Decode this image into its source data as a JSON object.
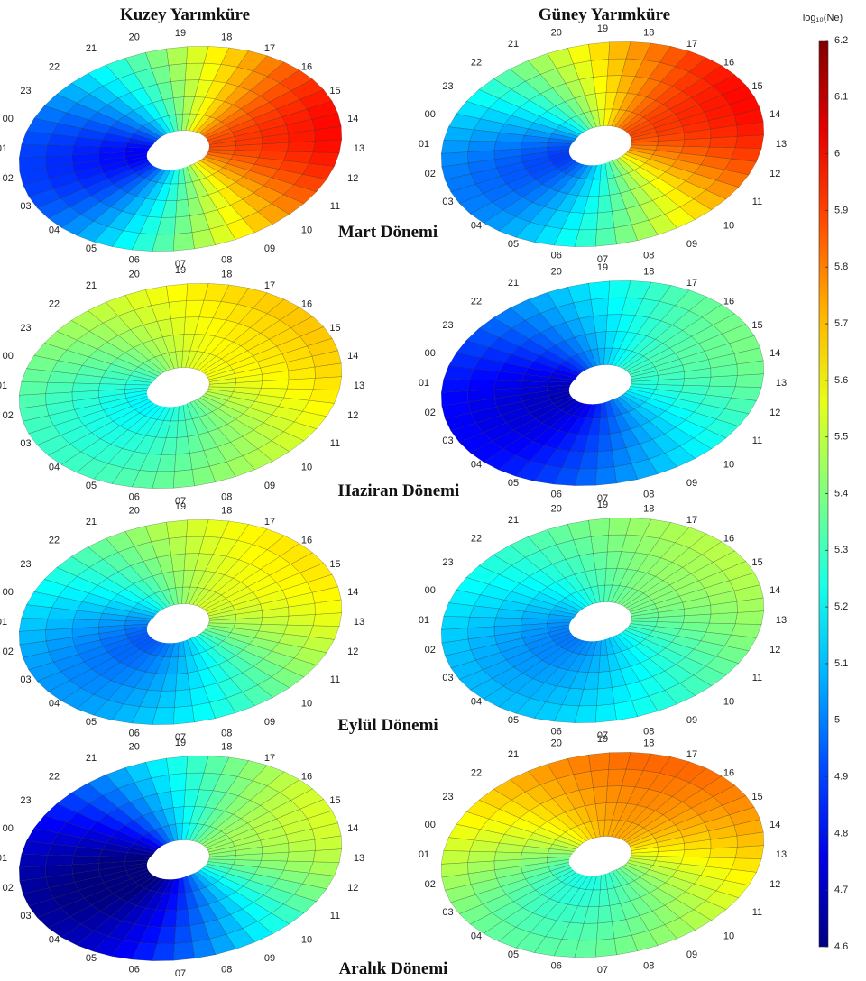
{
  "figure": {
    "column_titles": [
      "Kuzey Yarımküre",
      "Güney Yarımküre"
    ],
    "row_titles": [
      "Mart Dönemi",
      "Haziran Dönemi",
      "Eylül Dönemi",
      "Aralık Dönemi"
    ],
    "hour_labels": [
      "00",
      "01",
      "02",
      "03",
      "04",
      "05",
      "06",
      "07",
      "08",
      "09",
      "10",
      "11",
      "12",
      "13",
      "14",
      "15",
      "16",
      "17",
      "18",
      "19",
      "20",
      "21",
      "22",
      "23"
    ],
    "colorbar": {
      "label": "log₁₀(Ne)",
      "lim": [
        4.6,
        6.2
      ],
      "ticks": [
        6.2,
        6.1,
        6,
        5.9,
        5.8,
        5.7,
        5.6,
        5.5,
        5.4,
        5.3,
        5.2,
        5.1,
        5,
        4.9,
        4.8,
        4.7,
        4.6
      ]
    }
  }
}
